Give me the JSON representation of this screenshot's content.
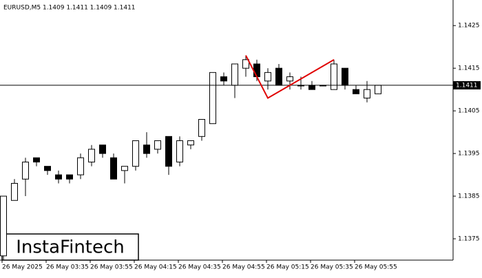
{
  "chart_data": {
    "type": "candlestick",
    "title": "EURUSD,M5  1.1409 1.1411 1.1409 1.1411",
    "categories": [
      "26 May 2025",
      null,
      null,
      null,
      "26 May 03:35",
      null,
      null,
      null,
      "26 May 03:55",
      null,
      null,
      null,
      "26 May 04:15",
      null,
      null,
      null,
      "26 May 04:35",
      null,
      null,
      null,
      "26 May 04:55",
      null,
      null,
      null,
      "26 May 05:15",
      null,
      null,
      null,
      "26 May 05:35",
      null,
      null,
      null,
      "26 May 05:55",
      null,
      null
    ],
    "open": [
      1.1371,
      1.1384,
      1.1389,
      1.1394,
      1.1392,
      1.139,
      1.139,
      1.139,
      1.1393,
      1.1397,
      1.1394,
      1.1391,
      1.1392,
      1.1397,
      1.1396,
      1.1399,
      1.1393,
      1.1397,
      1.1399,
      1.1402,
      1.1413,
      1.1411,
      1.1415,
      1.1416,
      1.1412,
      1.1415,
      1.1412,
      1.1411,
      1.1411,
      1.1411,
      1.141,
      1.1415,
      1.141,
      1.1408,
      1.1409
    ],
    "high": [
      1.1385,
      1.1389,
      1.1394,
      1.1394,
      1.1392,
      1.1391,
      1.139,
      1.1395,
      1.1397,
      1.1397,
      1.1395,
      1.1392,
      1.1398,
      1.14,
      1.1398,
      1.1399,
      1.1399,
      1.1398,
      1.1403,
      1.1414,
      1.1414,
      1.1416,
      1.1418,
      1.1417,
      1.1415,
      1.1416,
      1.1414,
      1.1413,
      1.1412,
      1.1411,
      1.1417,
      1.1415,
      1.1411,
      1.1412,
      1.1411
    ],
    "low": [
      1.137,
      1.1384,
      1.1385,
      1.1392,
      1.139,
      1.1388,
      1.1388,
      1.1389,
      1.1392,
      1.1394,
      1.1389,
      1.1388,
      1.1391,
      1.1394,
      1.1395,
      1.139,
      1.1392,
      1.1396,
      1.1398,
      1.1402,
      1.1411,
      1.1408,
      1.1413,
      1.1412,
      1.141,
      1.1411,
      1.141,
      1.141,
      1.141,
      1.1411,
      1.141,
      1.141,
      1.1409,
      1.1407,
      1.1409
    ],
    "close": [
      1.1385,
      1.1388,
      1.1393,
      1.1393,
      1.1391,
      1.1389,
      1.1389,
      1.1394,
      1.1396,
      1.1395,
      1.1389,
      1.1392,
      1.1398,
      1.1395,
      1.1398,
      1.1392,
      1.1398,
      1.1398,
      1.1403,
      1.1414,
      1.1412,
      1.1416,
      1.1417,
      1.1413,
      1.1414,
      1.1411,
      1.1413,
      1.1411,
      1.141,
      1.1411,
      1.1416,
      1.1411,
      1.1409,
      1.141,
      1.1411
    ],
    "up_color": "#ffffff",
    "down_color": "#000000",
    "pattern_color": "#e00000",
    "pattern": {
      "x": [
        22,
        24,
        30
      ],
      "values": [
        1.1418,
        1.1408,
        1.1417
      ]
    },
    "last_price": 1.1411,
    "ylim": [
      1.137,
      1.1431
    ],
    "yticks": [
      1.1375,
      1.1385,
      1.1395,
      1.1405,
      1.1415,
      1.1425
    ],
    "logo": "InstaFintech"
  }
}
